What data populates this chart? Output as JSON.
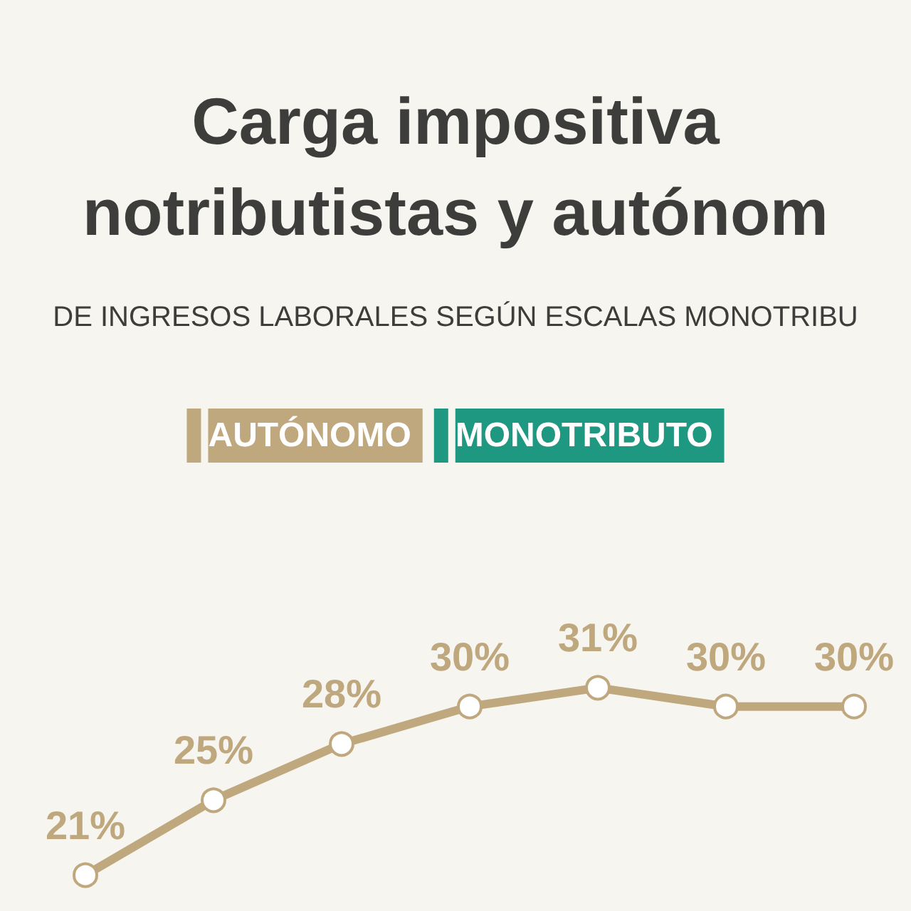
{
  "chart_data": {
    "type": "line",
    "title": "Carga impositiva\nnotributistas y autónom",
    "subtitle": "DE INGRESOS LABORALES SEGÚN ESCALAS MONOTRIBU",
    "categories": [
      null,
      null,
      null,
      null,
      null,
      null,
      null
    ],
    "series": [
      {
        "name": "AUTÓNOMO",
        "color": "#bfa77e",
        "values": [
          21,
          25,
          28,
          30,
          31,
          30,
          30
        ],
        "value_labels": [
          "21%",
          "25%",
          "28%",
          "30%",
          "31%",
          "30%",
          "30%"
        ]
      },
      {
        "name": "MONOTRIBUTO",
        "color": "#1f9882",
        "values": [
          null,
          null,
          null,
          null,
          null,
          null,
          null
        ]
      }
    ],
    "legend": "top",
    "grid": false,
    "tick_labels": false,
    "marker": "circle",
    "line_style": "solid"
  }
}
